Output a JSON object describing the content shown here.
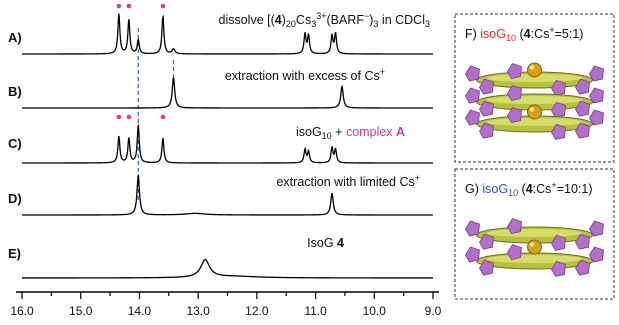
{
  "figure": {
    "panels": [
      {
        "id": "A",
        "label": "A)",
        "annotation_html": "dissolve [(<tspan font-weight='bold'>4</tspan>)<tspan dy='3' font-size='9'>20</tspan><tspan dy='-3'>Cs</tspan><tspan dy='3' font-size='9'>3</tspan><tspan dy='-8' font-size='9'>3+</tspan><tspan dy='5'>(BARF</tspan><tspan dy='-5' font-size='9'>−</tspan><tspan dy='5'>)</tspan><tspan dy='3' font-size='9'>3</tspan><tspan dy='-3'> in CDCl</tspan><tspan dy='3' font-size='9'>3</tspan>"
      },
      {
        "id": "B",
        "label": "B)",
        "annotation_html": "extraction with excess of Cs<tspan dy='-5' font-size='9'>+</tspan>"
      },
      {
        "id": "C",
        "label": "C)",
        "annotation_html": "isoG<tspan dy='3' font-size='9'>10</tspan><tspan dy='-3'> + </tspan><tspan fill='#c040a0'>complex </tspan><tspan fill='#c040a0' font-weight='bold'>A</tspan>"
      },
      {
        "id": "D",
        "label": "D)",
        "annotation_html": "extraction with limited Cs<tspan dy='-5' font-size='9'>+</tspan>"
      },
      {
        "id": "E",
        "label": "E)",
        "annotation_html": "IsoG <tspan font-weight='bold'>4</tspan>"
      }
    ],
    "boxes": [
      {
        "id": "F",
        "label_html": "F)  <tspan fill='#e03030'>isoG</tspan><tspan fill='#e03030' dy='3' font-size='9'>10</tspan><tspan dy='-3'> (</tspan><tspan font-weight='bold'>4</tspan><tspan>:Cs</tspan><tspan dy='-5' font-size='9'>+</tspan><tspan dy='5'>=5:1)</tspan>",
        "cs_count": 2
      },
      {
        "id": "G",
        "label_html": "G)  <tspan fill='#3050c0'>isoG</tspan><tspan fill='#3050c0' dy='3' font-size='9'>10</tspan><tspan dy='-3'> (</tspan><tspan font-weight='bold'>4</tspan><tspan>:Cs</tspan><tspan dy='-5' font-size='9'>+</tspan><tspan dy='5'>=10:1)</tspan>",
        "cs_count": 1
      }
    ]
  },
  "chart_data": {
    "type": "line",
    "xlabel": "",
    "ylabel": "",
    "xlim": [
      16.0,
      9.0
    ],
    "x_reversed": true,
    "tick_labels": [
      "16.0",
      "15.0",
      "14.0",
      "13.0",
      "12.0",
      "11.0",
      "10.0",
      "9.0"
    ],
    "ticks": [
      16.0,
      15.0,
      14.0,
      13.0,
      12.0,
      11.0,
      10.0,
      9.0
    ],
    "guides": [
      {
        "ppm": 14.02,
        "color": "#3060c0"
      },
      {
        "ppm": 13.42,
        "color": "#e03030"
      }
    ],
    "series": [
      {
        "panel": "A",
        "peaks": [
          {
            "ppm": 14.35,
            "h": 1.0,
            "w": 0.02
          },
          {
            "ppm": 14.18,
            "h": 0.85,
            "w": 0.02
          },
          {
            "ppm": 14.02,
            "h": 0.35,
            "w": 0.02
          },
          {
            "ppm": 13.6,
            "h": 0.95,
            "w": 0.02
          },
          {
            "ppm": 13.42,
            "h": 0.12,
            "w": 0.03
          },
          {
            "ppm": 11.18,
            "h": 0.5,
            "w": 0.02
          },
          {
            "ppm": 11.12,
            "h": 0.45,
            "w": 0.02
          },
          {
            "ppm": 10.72,
            "h": 0.45,
            "w": 0.02
          },
          {
            "ppm": 10.66,
            "h": 0.5,
            "w": 0.02
          }
        ],
        "dots": [
          14.35,
          14.18,
          13.6
        ],
        "dot_color": "#d040a0"
      },
      {
        "panel": "B",
        "peaks": [
          {
            "ppm": 13.42,
            "h": 0.85,
            "w": 0.025
          },
          {
            "ppm": 10.55,
            "h": 0.6,
            "w": 0.025
          }
        ]
      },
      {
        "panel": "C",
        "peaks": [
          {
            "ppm": 14.35,
            "h": 0.7,
            "w": 0.02
          },
          {
            "ppm": 14.18,
            "h": 0.65,
            "w": 0.02
          },
          {
            "ppm": 14.02,
            "h": 1.0,
            "w": 0.02
          },
          {
            "ppm": 13.6,
            "h": 0.65,
            "w": 0.02
          },
          {
            "ppm": 11.18,
            "h": 0.35,
            "w": 0.02
          },
          {
            "ppm": 11.12,
            "h": 0.3,
            "w": 0.02
          },
          {
            "ppm": 10.72,
            "h": 0.4,
            "w": 0.02
          },
          {
            "ppm": 10.66,
            "h": 0.35,
            "w": 0.02
          }
        ],
        "dots": [
          14.35,
          14.18,
          13.6
        ],
        "dot_color": "#d040a0"
      },
      {
        "panel": "D",
        "peaks": [
          {
            "ppm": 14.02,
            "h": 1.0,
            "w": 0.025
          },
          {
            "ppm": 13.05,
            "h": 0.04,
            "w": 0.2
          },
          {
            "ppm": 10.72,
            "h": 0.55,
            "w": 0.025
          }
        ]
      },
      {
        "panel": "E",
        "peaks": [
          {
            "ppm": 12.88,
            "h": 0.55,
            "w": 0.09
          },
          {
            "ppm": 12.4,
            "h": 0.05,
            "w": 0.5
          }
        ]
      }
    ]
  }
}
